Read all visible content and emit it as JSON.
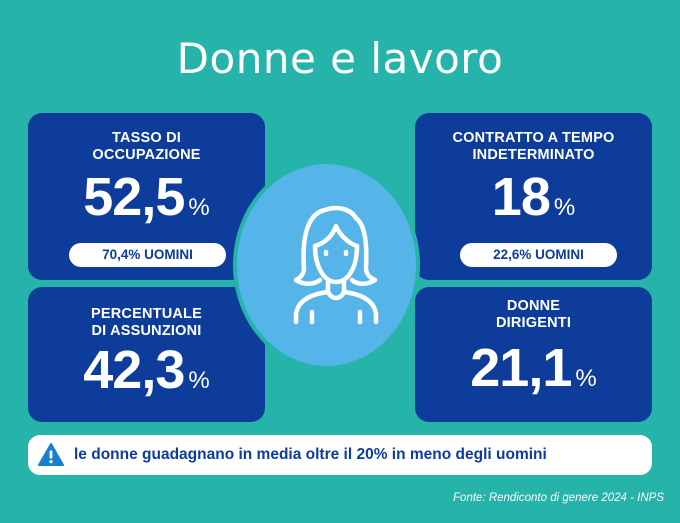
{
  "title": "Donne e lavoro",
  "chart_data": {
    "type": "table",
    "stats": [
      {
        "label_lines": [
          "TASSO DI",
          "OCCUPAZIONE"
        ],
        "value": "52,5",
        "unit": "%",
        "comparison": "70,4%  UOMINI"
      },
      {
        "label_lines": [
          "CONTRATTO A TEMPO",
          "INDETERMINATO"
        ],
        "value": "18",
        "unit": "%",
        "comparison": "22,6% UOMINI"
      },
      {
        "label_lines": [
          "PERCENTUALE",
          "DI ASSUNZIONI"
        ],
        "value": "42,3",
        "unit": "%"
      },
      {
        "label_lines": [
          "DONNE",
          "DIRIGENTI"
        ],
        "value": "21,1",
        "unit": "%"
      }
    ]
  },
  "notice": {
    "icon": "warning-icon",
    "text": "le donne guadagnano in media oltre il 20% in meno degli uomini"
  },
  "source": "Fonte: Rendiconto di genere 2024 - INPS",
  "center_icon": "woman-icon",
  "colors": {
    "background": "#26b3a9",
    "card": "#0d3c9a",
    "circle": "#55b5e8",
    "text_light": "#ffffff"
  }
}
